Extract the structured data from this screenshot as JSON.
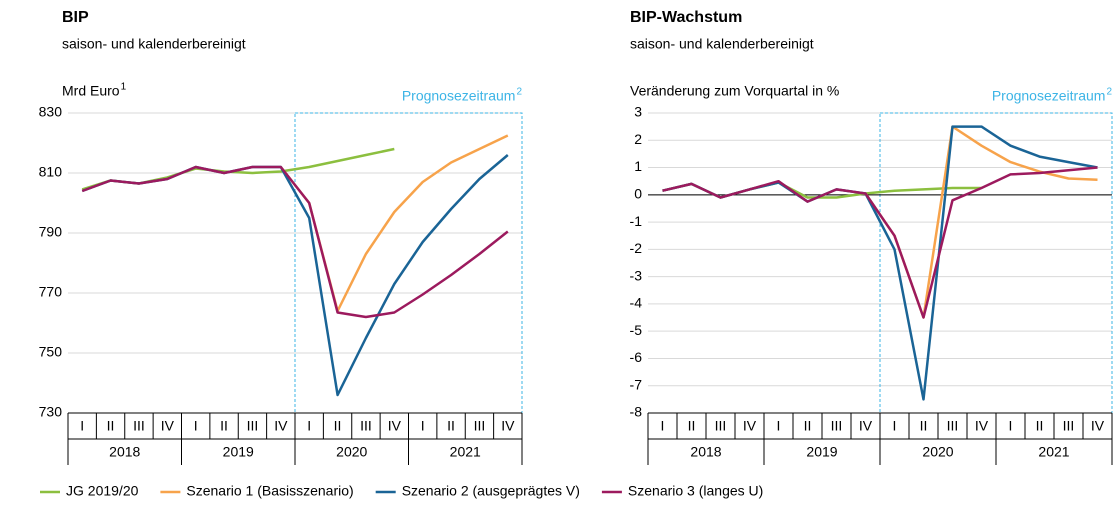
{
  "chart_data": [
    {
      "type": "line",
      "title": "BIP",
      "subtitle": "saison- und kalenderbereinigt",
      "y_label": "Mrd Euro",
      "y_label_note": "1",
      "forecast_label": "Prognosezeitraum",
      "forecast_note": "2",
      "categories": [
        "I",
        "II",
        "III",
        "IV",
        "I",
        "II",
        "III",
        "IV",
        "I",
        "II",
        "III",
        "IV",
        "I",
        "II",
        "III",
        "IV"
      ],
      "years": [
        "2018",
        "2019",
        "2020",
        "2021"
      ],
      "ylim": [
        730,
        830
      ],
      "yticks": [
        730,
        750,
        770,
        790,
        810,
        830
      ],
      "grid": true,
      "series": [
        {
          "name": "JG 2019/20",
          "color": "#8cbf3f",
          "values": [
            804.5,
            807.5,
            806.5,
            808.5,
            811.5,
            810.5,
            810,
            810.5,
            812,
            814,
            816,
            818,
            null,
            null,
            null,
            null
          ]
        },
        {
          "name": "Szenario 1 (Basisszenario)",
          "color": "#f7a34b",
          "values": [
            null,
            null,
            null,
            null,
            null,
            null,
            null,
            812,
            800,
            764,
            783,
            797,
            807,
            813.5,
            818,
            822.5
          ]
        },
        {
          "name": "Szenario 2 (ausgeprägtes V)",
          "color": "#1a6496",
          "values": [
            804,
            807.5,
            806.5,
            808,
            812,
            810,
            812,
            812,
            795,
            736,
            755,
            773,
            787,
            798,
            808,
            816
          ]
        },
        {
          "name": "Szenario 3 (langes U)",
          "color": "#9c1a5e",
          "values": [
            804,
            807.5,
            806.5,
            808,
            812,
            810,
            812,
            812,
            800,
            763.5,
            762,
            763.5,
            769.5,
            776,
            783,
            790.5
          ]
        }
      ]
    },
    {
      "type": "line",
      "title": "BIP-Wachstum",
      "subtitle": "saison- und kalenderbereinigt",
      "y_label": "Veränderung zum Vorquartal in %",
      "forecast_label": "Prognosezeitraum",
      "forecast_note": "2",
      "categories": [
        "I",
        "II",
        "III",
        "IV",
        "I",
        "II",
        "III",
        "IV",
        "I",
        "II",
        "III",
        "IV",
        "I",
        "II",
        "III",
        "IV"
      ],
      "years": [
        "2018",
        "2019",
        "2020",
        "2021"
      ],
      "ylim": [
        -8,
        3
      ],
      "yticks": [
        -8,
        -7,
        -6,
        -5,
        -4,
        -3,
        -2,
        -1,
        0,
        1,
        2,
        3
      ],
      "grid": true,
      "zero_line": true,
      "series": [
        {
          "name": "JG 2019/20",
          "color": "#8cbf3f",
          "values": [
            0.15,
            0.4,
            -0.1,
            0.2,
            0.45,
            -0.1,
            -0.1,
            0.05,
            0.15,
            0.2,
            0.25,
            0.25,
            null,
            null,
            null,
            null
          ]
        },
        {
          "name": "Szenario 1 (Basisszenario)",
          "color": "#f7a34b",
          "values": [
            null,
            null,
            null,
            null,
            null,
            null,
            null,
            0.05,
            -1.5,
            -4.5,
            2.5,
            1.8,
            1.2,
            0.85,
            0.6,
            0.55
          ]
        },
        {
          "name": "Szenario 2 (ausgeprägtes V)",
          "color": "#1a6496",
          "values": [
            0.15,
            0.4,
            -0.1,
            0.2,
            0.45,
            -0.25,
            0.2,
            0.05,
            -2,
            -7.5,
            2.5,
            2.5,
            1.8,
            1.4,
            1.2,
            1.0
          ]
        },
        {
          "name": "Szenario 3 (langes U)",
          "color": "#9c1a5e",
          "values": [
            0.15,
            0.4,
            -0.1,
            0.2,
            0.5,
            -0.25,
            0.2,
            0.05,
            -1.5,
            -4.5,
            -0.2,
            0.25,
            0.75,
            0.8,
            0.9,
            1.0
          ]
        }
      ]
    }
  ]
}
